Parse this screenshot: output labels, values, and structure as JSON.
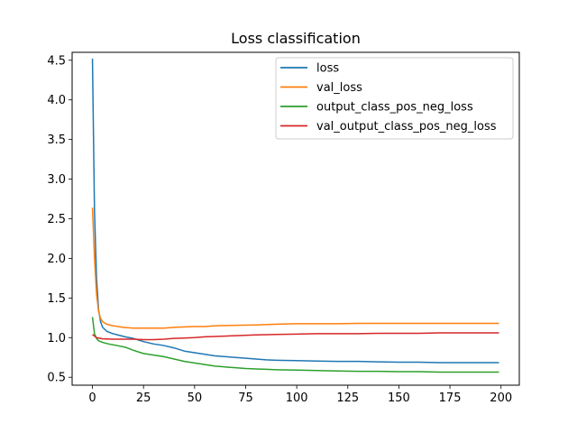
{
  "chart_data": {
    "type": "line",
    "title": "Loss classification",
    "xlabel": "",
    "ylabel": "",
    "xlim": [
      -9.95,
      208.95
    ],
    "ylim": [
      0.4,
      4.6
    ],
    "xticks": [
      0,
      25,
      50,
      75,
      100,
      125,
      150,
      175,
      200
    ],
    "yticks": [
      0.5,
      1.0,
      1.5,
      2.0,
      2.5,
      3.0,
      3.5,
      4.0,
      4.5
    ],
    "ytick_labels": [
      "0.5",
      "1.0",
      "1.5",
      "2.0",
      "2.5",
      "3.0",
      "3.5",
      "4.0",
      "4.5"
    ],
    "grid": false,
    "legend_position": "top-right",
    "series": [
      {
        "name": "loss",
        "color": "#1f77b4",
        "points": [
          [
            0,
            4.52
          ],
          [
            1,
            2.6
          ],
          [
            2,
            1.75
          ],
          [
            3,
            1.35
          ],
          [
            4,
            1.2
          ],
          [
            5,
            1.13
          ],
          [
            7,
            1.08
          ],
          [
            10,
            1.05
          ],
          [
            13,
            1.03
          ],
          [
            16,
            1.01
          ],
          [
            20,
            0.99
          ],
          [
            25,
            0.95
          ],
          [
            30,
            0.92
          ],
          [
            35,
            0.9
          ],
          [
            40,
            0.87
          ],
          [
            45,
            0.83
          ],
          [
            50,
            0.81
          ],
          [
            55,
            0.79
          ],
          [
            60,
            0.77
          ],
          [
            65,
            0.76
          ],
          [
            70,
            0.75
          ],
          [
            75,
            0.74
          ],
          [
            80,
            0.73
          ],
          [
            85,
            0.72
          ],
          [
            90,
            0.715
          ],
          [
            100,
            0.71
          ],
          [
            110,
            0.705
          ],
          [
            120,
            0.7
          ],
          [
            130,
            0.7
          ],
          [
            140,
            0.695
          ],
          [
            150,
            0.69
          ],
          [
            160,
            0.69
          ],
          [
            170,
            0.685
          ],
          [
            180,
            0.685
          ],
          [
            190,
            0.685
          ],
          [
            199,
            0.685
          ]
        ]
      },
      {
        "name": "val_loss",
        "color": "#ff7f0e",
        "points": [
          [
            0,
            2.64
          ],
          [
            1,
            2.0
          ],
          [
            2,
            1.55
          ],
          [
            3,
            1.33
          ],
          [
            4,
            1.24
          ],
          [
            5,
            1.2
          ],
          [
            7,
            1.17
          ],
          [
            10,
            1.15
          ],
          [
            15,
            1.13
          ],
          [
            20,
            1.12
          ],
          [
            25,
            1.12
          ],
          [
            30,
            1.12
          ],
          [
            35,
            1.12
          ],
          [
            40,
            1.13
          ],
          [
            45,
            1.135
          ],
          [
            50,
            1.14
          ],
          [
            55,
            1.14
          ],
          [
            60,
            1.15
          ],
          [
            70,
            1.155
          ],
          [
            80,
            1.16
          ],
          [
            90,
            1.17
          ],
          [
            100,
            1.175
          ],
          [
            110,
            1.175
          ],
          [
            120,
            1.175
          ],
          [
            130,
            1.18
          ],
          [
            140,
            1.18
          ],
          [
            150,
            1.18
          ],
          [
            160,
            1.18
          ],
          [
            170,
            1.18
          ],
          [
            180,
            1.18
          ],
          [
            190,
            1.18
          ],
          [
            199,
            1.18
          ]
        ]
      },
      {
        "name": "output_class_pos_neg_loss",
        "color": "#2ca02c",
        "points": [
          [
            0,
            1.26
          ],
          [
            1,
            1.05
          ],
          [
            2,
            0.99
          ],
          [
            3,
            0.96
          ],
          [
            5,
            0.94
          ],
          [
            8,
            0.92
          ],
          [
            12,
            0.9
          ],
          [
            16,
            0.88
          ],
          [
            20,
            0.84
          ],
          [
            25,
            0.8
          ],
          [
            30,
            0.78
          ],
          [
            35,
            0.76
          ],
          [
            40,
            0.73
          ],
          [
            45,
            0.7
          ],
          [
            50,
            0.68
          ],
          [
            55,
            0.66
          ],
          [
            60,
            0.64
          ],
          [
            65,
            0.63
          ],
          [
            70,
            0.62
          ],
          [
            75,
            0.61
          ],
          [
            80,
            0.605
          ],
          [
            85,
            0.6
          ],
          [
            90,
            0.595
          ],
          [
            100,
            0.59
          ],
          [
            110,
            0.585
          ],
          [
            120,
            0.58
          ],
          [
            130,
            0.575
          ],
          [
            140,
            0.575
          ],
          [
            150,
            0.57
          ],
          [
            160,
            0.57
          ],
          [
            170,
            0.565
          ],
          [
            180,
            0.565
          ],
          [
            190,
            0.565
          ],
          [
            199,
            0.565
          ]
        ]
      },
      {
        "name": "val_output_class_pos_neg_loss",
        "color": "#d62728",
        "points": [
          [
            0,
            1.04
          ],
          [
            2,
            1.0
          ],
          [
            5,
            0.985
          ],
          [
            10,
            0.98
          ],
          [
            15,
            0.98
          ],
          [
            20,
            0.98
          ],
          [
            25,
            0.975
          ],
          [
            30,
            0.975
          ],
          [
            35,
            0.98
          ],
          [
            40,
            0.99
          ],
          [
            45,
            0.995
          ],
          [
            50,
            1.0
          ],
          [
            55,
            1.01
          ],
          [
            60,
            1.015
          ],
          [
            70,
            1.025
          ],
          [
            80,
            1.035
          ],
          [
            90,
            1.04
          ],
          [
            100,
            1.045
          ],
          [
            110,
            1.05
          ],
          [
            120,
            1.05
          ],
          [
            130,
            1.05
          ],
          [
            140,
            1.055
          ],
          [
            150,
            1.055
          ],
          [
            160,
            1.055
          ],
          [
            170,
            1.06
          ],
          [
            180,
            1.06
          ],
          [
            190,
            1.06
          ],
          [
            199,
            1.06
          ]
        ]
      }
    ]
  }
}
